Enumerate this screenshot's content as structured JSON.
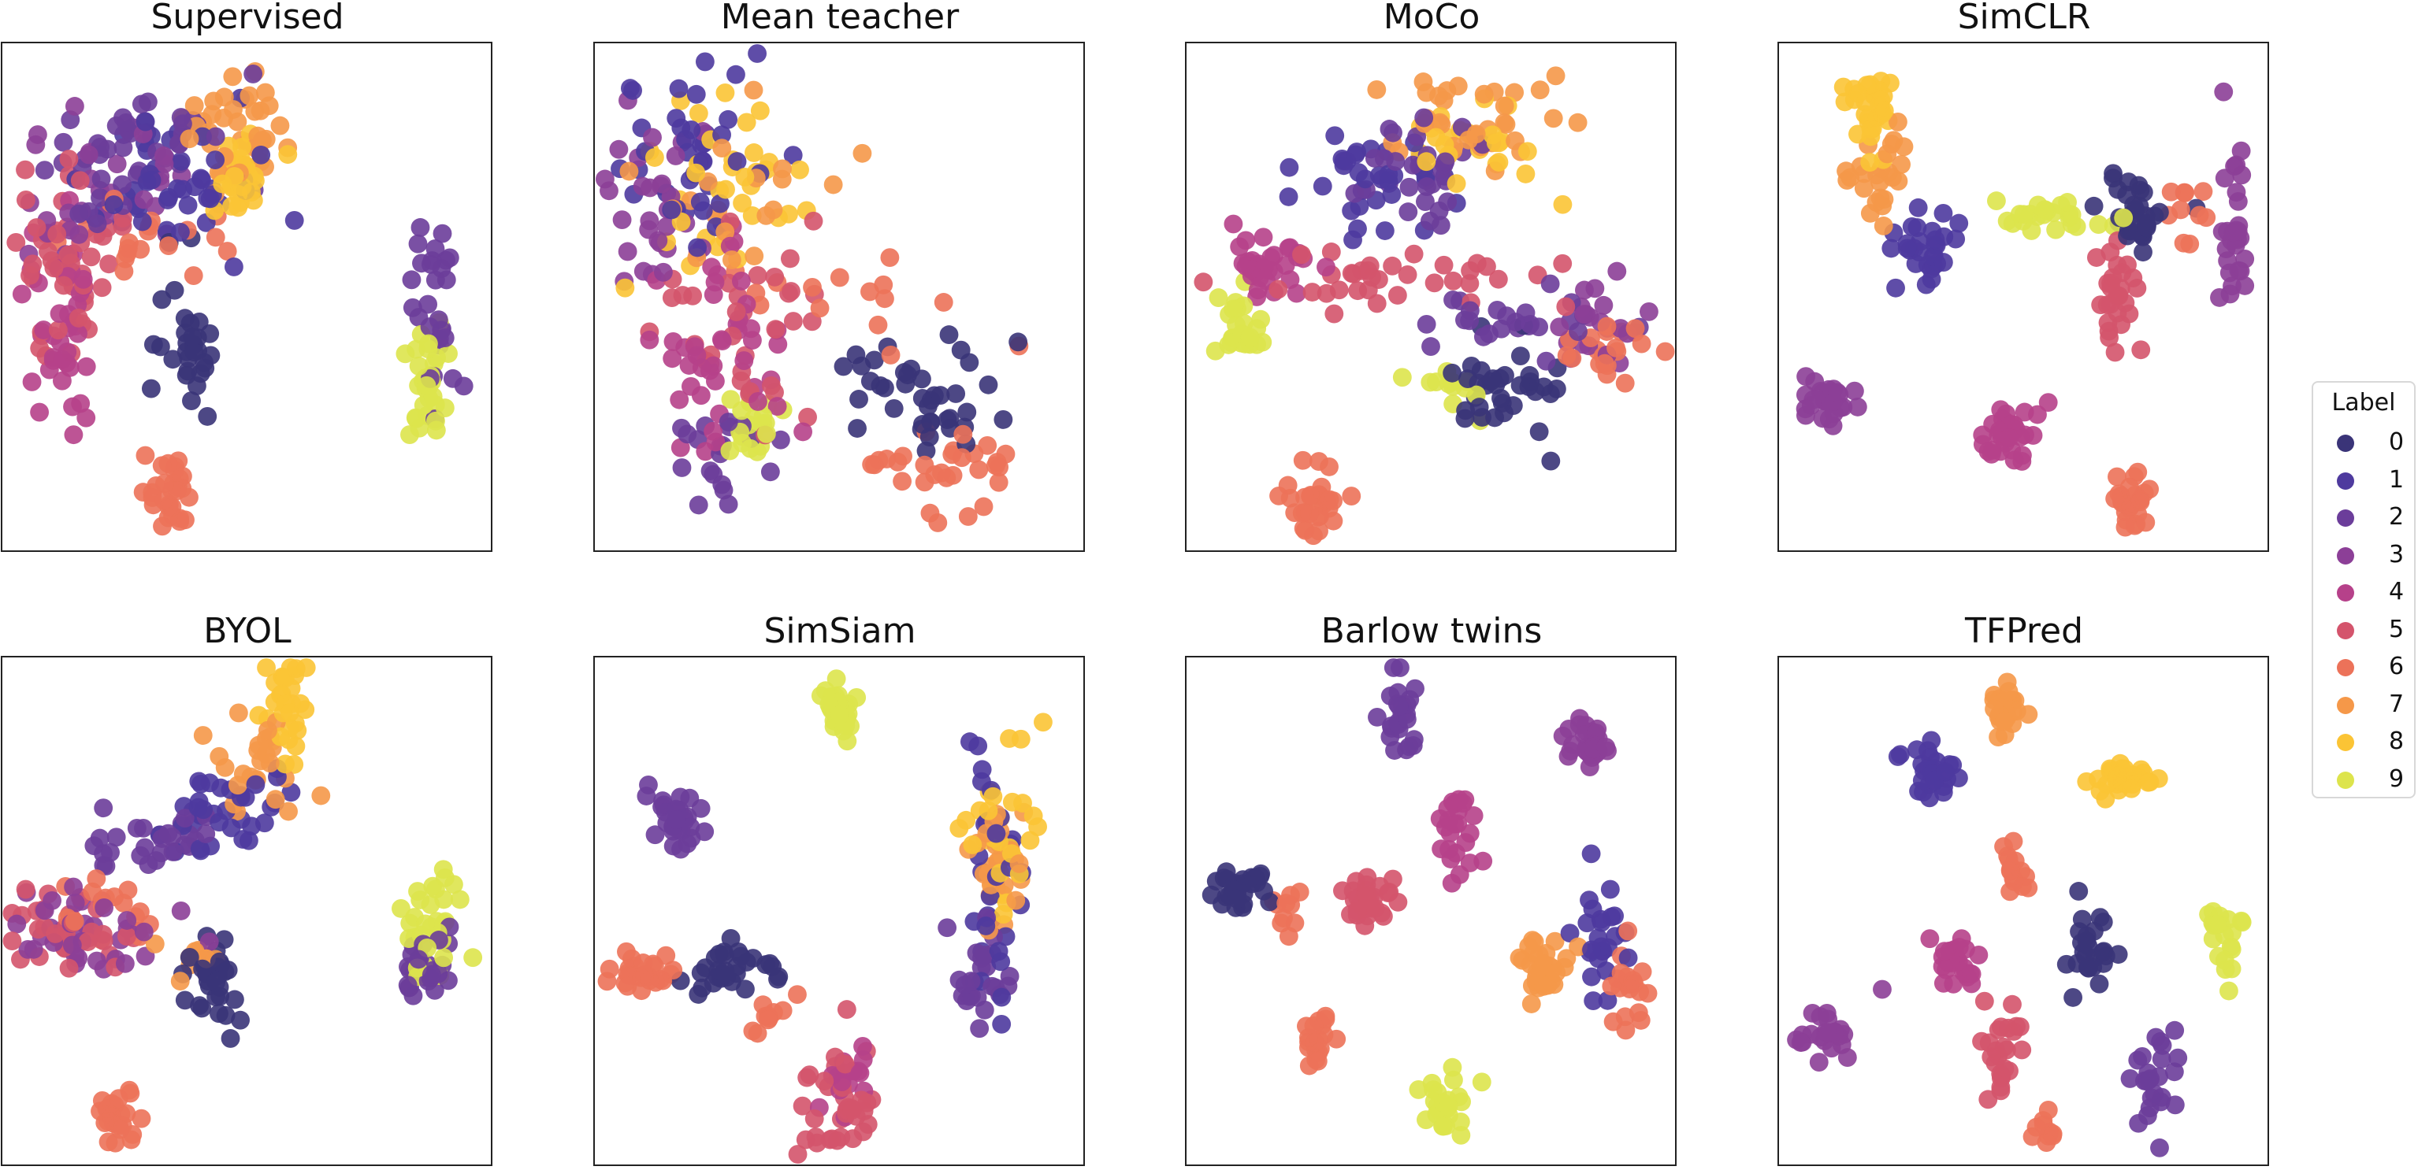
{
  "figure": {
    "legend_title": "Label",
    "legend_position": "right",
    "labels": [
      "0",
      "1",
      "2",
      "3",
      "4",
      "5",
      "6",
      "7",
      "8",
      "9"
    ],
    "colors": [
      "#3a3478",
      "#4e3a9e",
      "#6b3d9a",
      "#8c3f97",
      "#b6418a",
      "#d4546c",
      "#ec7259",
      "#f59849",
      "#fbc435",
      "#dde44c"
    ]
  },
  "chart_data": [
    {
      "type": "scatter",
      "title": "Supervised",
      "clusters": [
        {
          "label": 7,
          "x": 0.47,
          "y": 0.84,
          "sx": 0.055,
          "sy": 0.05,
          "n": 40
        },
        {
          "label": 8,
          "x": 0.48,
          "y": 0.73,
          "sx": 0.045,
          "sy": 0.04,
          "n": 25
        },
        {
          "label": 1,
          "x": 0.33,
          "y": 0.73,
          "sx": 0.1,
          "sy": 0.07,
          "n": 45
        },
        {
          "label": 2,
          "x": 0.27,
          "y": 0.77,
          "sx": 0.09,
          "sy": 0.07,
          "n": 45
        },
        {
          "label": 3,
          "x": 0.23,
          "y": 0.71,
          "sx": 0.09,
          "sy": 0.07,
          "n": 30
        },
        {
          "label": 5,
          "x": 0.13,
          "y": 0.55,
          "sx": 0.06,
          "sy": 0.1,
          "n": 45
        },
        {
          "label": 4,
          "x": 0.12,
          "y": 0.44,
          "sx": 0.045,
          "sy": 0.09,
          "n": 40
        },
        {
          "label": 6,
          "x": 0.3,
          "y": 0.62,
          "sx": 0.09,
          "sy": 0.06,
          "n": 20
        },
        {
          "label": 0,
          "x": 0.38,
          "y": 0.41,
          "sx": 0.035,
          "sy": 0.08,
          "n": 30
        },
        {
          "label": 9,
          "x": 0.87,
          "y": 0.33,
          "sx": 0.025,
          "sy": 0.06,
          "n": 30
        },
        {
          "label": 2,
          "x": 0.89,
          "y": 0.47,
          "sx": 0.025,
          "sy": 0.08,
          "n": 28
        },
        {
          "label": 6,
          "x": 0.34,
          "y": 0.11,
          "sx": 0.02,
          "sy": 0.035,
          "n": 30
        }
      ]
    },
    {
      "type": "scatter",
      "title": "Mean teacher",
      "clusters": [
        {
          "label": 1,
          "x": 0.2,
          "y": 0.77,
          "sx": 0.08,
          "sy": 0.1,
          "n": 40
        },
        {
          "label": 8,
          "x": 0.25,
          "y": 0.72,
          "sx": 0.07,
          "sy": 0.08,
          "n": 35
        },
        {
          "label": 3,
          "x": 0.13,
          "y": 0.69,
          "sx": 0.06,
          "sy": 0.07,
          "n": 30
        },
        {
          "label": 7,
          "x": 0.33,
          "y": 0.7,
          "sx": 0.1,
          "sy": 0.08,
          "n": 20
        },
        {
          "label": 4,
          "x": 0.25,
          "y": 0.4,
          "sx": 0.06,
          "sy": 0.08,
          "n": 45
        },
        {
          "label": 5,
          "x": 0.3,
          "y": 0.45,
          "sx": 0.1,
          "sy": 0.1,
          "n": 35
        },
        {
          "label": 9,
          "x": 0.31,
          "y": 0.24,
          "sx": 0.04,
          "sy": 0.035,
          "n": 20
        },
        {
          "label": 2,
          "x": 0.25,
          "y": 0.2,
          "sx": 0.05,
          "sy": 0.05,
          "n": 20
        },
        {
          "label": 0,
          "x": 0.68,
          "y": 0.31,
          "sx": 0.09,
          "sy": 0.07,
          "n": 40
        },
        {
          "label": 6,
          "x": 0.7,
          "y": 0.15,
          "sx": 0.1,
          "sy": 0.05,
          "n": 30
        },
        {
          "label": 6,
          "x": 0.55,
          "y": 0.5,
          "sx": 0.12,
          "sy": 0.06,
          "n": 15
        }
      ]
    },
    {
      "type": "scatter",
      "title": "MoCo",
      "clusters": [
        {
          "label": 7,
          "x": 0.6,
          "y": 0.85,
          "sx": 0.09,
          "sy": 0.06,
          "n": 35
        },
        {
          "label": 8,
          "x": 0.58,
          "y": 0.8,
          "sx": 0.07,
          "sy": 0.05,
          "n": 25
        },
        {
          "label": 1,
          "x": 0.38,
          "y": 0.74,
          "sx": 0.07,
          "sy": 0.06,
          "n": 35
        },
        {
          "label": 2,
          "x": 0.48,
          "y": 0.77,
          "sx": 0.06,
          "sy": 0.06,
          "n": 30
        },
        {
          "label": 4,
          "x": 0.16,
          "y": 0.56,
          "sx": 0.04,
          "sy": 0.03,
          "n": 35
        },
        {
          "label": 5,
          "x": 0.45,
          "y": 0.53,
          "sx": 0.15,
          "sy": 0.03,
          "n": 35
        },
        {
          "label": 9,
          "x": 0.1,
          "y": 0.44,
          "sx": 0.03,
          "sy": 0.035,
          "n": 25
        },
        {
          "label": 2,
          "x": 0.65,
          "y": 0.46,
          "sx": 0.08,
          "sy": 0.03,
          "n": 25
        },
        {
          "label": 3,
          "x": 0.83,
          "y": 0.45,
          "sx": 0.05,
          "sy": 0.04,
          "n": 20
        },
        {
          "label": 6,
          "x": 0.86,
          "y": 0.39,
          "sx": 0.05,
          "sy": 0.04,
          "n": 20
        },
        {
          "label": 0,
          "x": 0.67,
          "y": 0.3,
          "sx": 0.06,
          "sy": 0.05,
          "n": 35
        },
        {
          "label": 9,
          "x": 0.54,
          "y": 0.32,
          "sx": 0.03,
          "sy": 0.025,
          "n": 12
        },
        {
          "label": 6,
          "x": 0.26,
          "y": 0.1,
          "sx": 0.025,
          "sy": 0.04,
          "n": 30
        }
      ]
    },
    {
      "type": "scatter",
      "title": "SimCLR",
      "clusters": [
        {
          "label": 8,
          "x": 0.2,
          "y": 0.88,
          "sx": 0.03,
          "sy": 0.04,
          "n": 30
        },
        {
          "label": 7,
          "x": 0.2,
          "y": 0.74,
          "sx": 0.03,
          "sy": 0.05,
          "n": 25
        },
        {
          "label": 1,
          "x": 0.3,
          "y": 0.6,
          "sx": 0.03,
          "sy": 0.05,
          "n": 30
        },
        {
          "label": 9,
          "x": 0.57,
          "y": 0.66,
          "sx": 0.06,
          "sy": 0.02,
          "n": 25
        },
        {
          "label": 0,
          "x": 0.72,
          "y": 0.66,
          "sx": 0.04,
          "sy": 0.04,
          "n": 30
        },
        {
          "label": 6,
          "x": 0.84,
          "y": 0.68,
          "sx": 0.03,
          "sy": 0.04,
          "n": 10
        },
        {
          "label": 5,
          "x": 0.69,
          "y": 0.5,
          "sx": 0.025,
          "sy": 0.07,
          "n": 28
        },
        {
          "label": 3,
          "x": 0.93,
          "y": 0.62,
          "sx": 0.02,
          "sy": 0.08,
          "n": 28
        },
        {
          "label": 3,
          "x": 0.1,
          "y": 0.3,
          "sx": 0.03,
          "sy": 0.025,
          "n": 30
        },
        {
          "label": 4,
          "x": 0.47,
          "y": 0.23,
          "sx": 0.03,
          "sy": 0.03,
          "n": 30
        },
        {
          "label": 6,
          "x": 0.72,
          "y": 0.09,
          "sx": 0.02,
          "sy": 0.03,
          "n": 25
        }
      ]
    },
    {
      "type": "scatter",
      "title": "BYOL",
      "clusters": [
        {
          "label": 8,
          "x": 0.58,
          "y": 0.9,
          "sx": 0.03,
          "sy": 0.05,
          "n": 30
        },
        {
          "label": 7,
          "x": 0.52,
          "y": 0.8,
          "sx": 0.05,
          "sy": 0.05,
          "n": 25
        },
        {
          "label": 1,
          "x": 0.45,
          "y": 0.7,
          "sx": 0.06,
          "sy": 0.05,
          "n": 35
        },
        {
          "label": 2,
          "x": 0.32,
          "y": 0.64,
          "sx": 0.07,
          "sy": 0.04,
          "n": 30
        },
        {
          "label": 3,
          "x": 0.15,
          "y": 0.46,
          "sx": 0.07,
          "sy": 0.04,
          "n": 35
        },
        {
          "label": 5,
          "x": 0.14,
          "y": 0.46,
          "sx": 0.08,
          "sy": 0.04,
          "n": 35
        },
        {
          "label": 6,
          "x": 0.22,
          "y": 0.5,
          "sx": 0.05,
          "sy": 0.03,
          "n": 15
        },
        {
          "label": 0,
          "x": 0.43,
          "y": 0.36,
          "sx": 0.03,
          "sy": 0.05,
          "n": 30
        },
        {
          "label": 7,
          "x": 0.39,
          "y": 0.42,
          "sx": 0.03,
          "sy": 0.03,
          "n": 10
        },
        {
          "label": 9,
          "x": 0.89,
          "y": 0.47,
          "sx": 0.03,
          "sy": 0.05,
          "n": 30
        },
        {
          "label": 2,
          "x": 0.87,
          "y": 0.38,
          "sx": 0.025,
          "sy": 0.04,
          "n": 25
        },
        {
          "label": 6,
          "x": 0.24,
          "y": 0.09,
          "sx": 0.02,
          "sy": 0.03,
          "n": 25
        }
      ]
    },
    {
      "type": "scatter",
      "title": "SimSiam",
      "clusters": [
        {
          "label": 9,
          "x": 0.5,
          "y": 0.9,
          "sx": 0.025,
          "sy": 0.03,
          "n": 30
        },
        {
          "label": 2,
          "x": 0.18,
          "y": 0.69,
          "sx": 0.03,
          "sy": 0.03,
          "n": 30
        },
        {
          "label": 8,
          "x": 0.85,
          "y": 0.65,
          "sx": 0.035,
          "sy": 0.1,
          "n": 30
        },
        {
          "label": 7,
          "x": 0.82,
          "y": 0.6,
          "sx": 0.03,
          "sy": 0.08,
          "n": 25
        },
        {
          "label": 1,
          "x": 0.82,
          "y": 0.54,
          "sx": 0.03,
          "sy": 0.1,
          "n": 30
        },
        {
          "label": 2,
          "x": 0.78,
          "y": 0.38,
          "sx": 0.03,
          "sy": 0.05,
          "n": 25
        },
        {
          "label": 6,
          "x": 0.1,
          "y": 0.38,
          "sx": 0.035,
          "sy": 0.018,
          "n": 25
        },
        {
          "label": 0,
          "x": 0.28,
          "y": 0.39,
          "sx": 0.04,
          "sy": 0.025,
          "n": 30
        },
        {
          "label": 6,
          "x": 0.36,
          "y": 0.3,
          "sx": 0.02,
          "sy": 0.02,
          "n": 10
        },
        {
          "label": 5,
          "x": 0.51,
          "y": 0.12,
          "sx": 0.04,
          "sy": 0.06,
          "n": 35
        },
        {
          "label": 4,
          "x": 0.52,
          "y": 0.18,
          "sx": 0.03,
          "sy": 0.04,
          "n": 15
        }
      ]
    },
    {
      "type": "scatter",
      "title": "Barlow twins",
      "clusters": [
        {
          "label": 2,
          "x": 0.44,
          "y": 0.89,
          "sx": 0.02,
          "sy": 0.04,
          "n": 25
        },
        {
          "label": 3,
          "x": 0.83,
          "y": 0.82,
          "sx": 0.03,
          "sy": 0.025,
          "n": 30
        },
        {
          "label": 4,
          "x": 0.56,
          "y": 0.65,
          "sx": 0.025,
          "sy": 0.04,
          "n": 25
        },
        {
          "label": 0,
          "x": 0.11,
          "y": 0.54,
          "sx": 0.035,
          "sy": 0.018,
          "n": 30
        },
        {
          "label": 6,
          "x": 0.2,
          "y": 0.51,
          "sx": 0.02,
          "sy": 0.02,
          "n": 10
        },
        {
          "label": 5,
          "x": 0.38,
          "y": 0.52,
          "sx": 0.035,
          "sy": 0.025,
          "n": 30
        },
        {
          "label": 7,
          "x": 0.73,
          "y": 0.39,
          "sx": 0.03,
          "sy": 0.03,
          "n": 30
        },
        {
          "label": 1,
          "x": 0.85,
          "y": 0.45,
          "sx": 0.025,
          "sy": 0.06,
          "n": 25
        },
        {
          "label": 6,
          "x": 0.91,
          "y": 0.35,
          "sx": 0.02,
          "sy": 0.05,
          "n": 20
        },
        {
          "label": 6,
          "x": 0.27,
          "y": 0.26,
          "sx": 0.015,
          "sy": 0.03,
          "n": 20
        },
        {
          "label": 9,
          "x": 0.53,
          "y": 0.11,
          "sx": 0.02,
          "sy": 0.035,
          "n": 25
        }
      ]
    },
    {
      "type": "scatter",
      "title": "TFPred",
      "clusters": [
        {
          "label": 7,
          "x": 0.46,
          "y": 0.9,
          "sx": 0.02,
          "sy": 0.035,
          "n": 25
        },
        {
          "label": 1,
          "x": 0.31,
          "y": 0.77,
          "sx": 0.03,
          "sy": 0.025,
          "n": 30
        },
        {
          "label": 8,
          "x": 0.7,
          "y": 0.76,
          "sx": 0.03,
          "sy": 0.015,
          "n": 28
        },
        {
          "label": 6,
          "x": 0.49,
          "y": 0.58,
          "sx": 0.015,
          "sy": 0.025,
          "n": 15
        },
        {
          "label": 9,
          "x": 0.91,
          "y": 0.45,
          "sx": 0.015,
          "sy": 0.04,
          "n": 20
        },
        {
          "label": 0,
          "x": 0.64,
          "y": 0.42,
          "sx": 0.02,
          "sy": 0.04,
          "n": 25
        },
        {
          "label": 4,
          "x": 0.36,
          "y": 0.4,
          "sx": 0.025,
          "sy": 0.025,
          "n": 25
        },
        {
          "label": 3,
          "x": 0.1,
          "y": 0.27,
          "sx": 0.035,
          "sy": 0.025,
          "n": 25
        },
        {
          "label": 5,
          "x": 0.46,
          "y": 0.23,
          "sx": 0.025,
          "sy": 0.06,
          "n": 25
        },
        {
          "label": 2,
          "x": 0.77,
          "y": 0.19,
          "sx": 0.025,
          "sy": 0.05,
          "n": 25
        },
        {
          "label": 6,
          "x": 0.55,
          "y": 0.07,
          "sx": 0.01,
          "sy": 0.02,
          "n": 10
        }
      ]
    }
  ]
}
